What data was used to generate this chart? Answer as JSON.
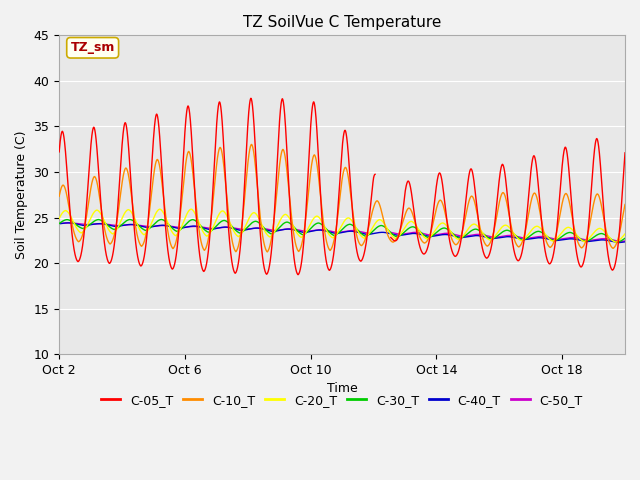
{
  "title": "TZ SoilVue C Temperature",
  "xlabel": "Time",
  "ylabel": "Soil Temperature (C)",
  "ylim": [
    10,
    45
  ],
  "xlim_days": [
    0,
    18
  ],
  "xtick_labels": [
    "Oct 2",
    "Oct 6",
    "Oct 10",
    "Oct 14",
    "Oct 18"
  ],
  "xtick_positions": [
    0,
    4,
    8,
    12,
    16
  ],
  "series_colors": {
    "C-05_T": "#ff0000",
    "C-10_T": "#ff8c00",
    "C-20_T": "#ffff00",
    "C-30_T": "#00cc00",
    "C-40_T": "#0000cd",
    "C-50_T": "#cc00cc"
  },
  "annotation_label": "TZ_sm",
  "annotation_box_color": "#fffff0",
  "annotation_text_color": "#aa0000",
  "plot_bg_color": "#e8e8e8",
  "fig_bg_color": "#f2f2f2",
  "title_fontsize": 11,
  "axis_label_fontsize": 9,
  "tick_fontsize": 9,
  "legend_fontsize": 9,
  "line_width": 1.0
}
